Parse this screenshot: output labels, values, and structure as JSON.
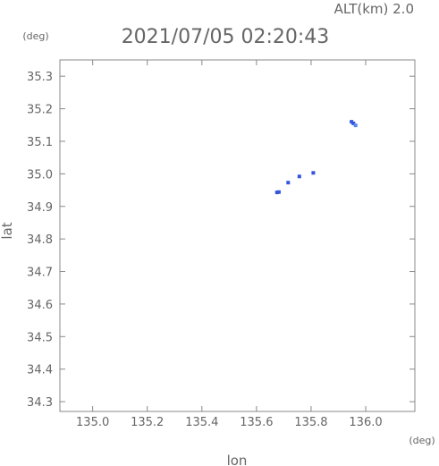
{
  "header": {
    "alt_label": "ALT(km) 2.0",
    "timestamp": "2021/07/05 02:20:43",
    "y_unit": "(deg)",
    "x_unit": "(deg)"
  },
  "chart_data": {
    "type": "scatter",
    "title": "2021/07/05 02:20:43",
    "xlabel": "lon",
    "ylabel": "lat",
    "xlim": [
      134.88,
      136.18
    ],
    "ylim": [
      34.27,
      35.35
    ],
    "xticks": [
      135.0,
      135.2,
      135.4,
      135.6,
      135.8,
      136.0
    ],
    "yticks": [
      34.3,
      34.4,
      34.5,
      34.6,
      34.7,
      34.8,
      34.9,
      35.0,
      35.1,
      35.2,
      35.3
    ],
    "xtick_labels": [
      "135.0",
      "135.2",
      "135.4",
      "135.6",
      "135.8",
      "136.0"
    ],
    "ytick_labels": [
      "34.3",
      "34.4",
      "34.5",
      "34.6",
      "34.7",
      "34.8",
      "34.9",
      "35.0",
      "35.1",
      "35.2",
      "35.3"
    ],
    "grid": false,
    "points": [
      {
        "x": 135.675,
        "y": 34.943,
        "color": "#3355dd"
      },
      {
        "x": 135.682,
        "y": 34.944,
        "color": "#3355dd"
      },
      {
        "x": 135.716,
        "y": 34.973,
        "color": "#3355dd"
      },
      {
        "x": 135.757,
        "y": 34.992,
        "color": "#3355dd"
      },
      {
        "x": 135.808,
        "y": 35.003,
        "color": "#3355dd"
      },
      {
        "x": 135.948,
        "y": 35.16,
        "color": "#3355dd"
      },
      {
        "x": 135.955,
        "y": 35.155,
        "color": "#3355dd"
      },
      {
        "x": 135.963,
        "y": 35.149,
        "color": "#5588ee"
      }
    ]
  }
}
